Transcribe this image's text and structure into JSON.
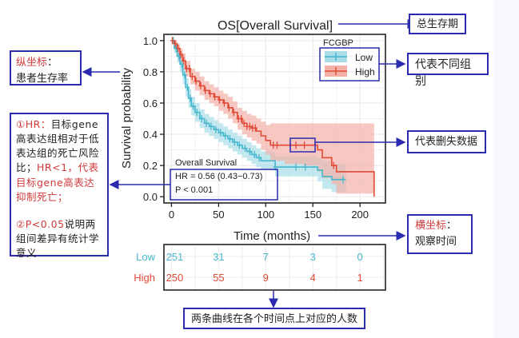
{
  "chart_data": {
    "type": "line",
    "subtype": "kaplan-meier",
    "title": "OS[Overall Survival]",
    "xlabel": "Time (months)",
    "ylabel": "Survival probability",
    "xlim": [
      -8,
      227
    ],
    "ylim": [
      -0.04,
      1.04
    ],
    "xticks": [
      0,
      50,
      100,
      150,
      200
    ],
    "yticks": [
      0.0,
      0.2,
      0.4,
      0.6,
      0.8,
      1.0
    ],
    "xtick_labels": [
      "0",
      "50",
      "100",
      "150",
      "200"
    ],
    "ytick_labels": [
      "0.0",
      "0.2",
      "0.4",
      "0.6",
      "0.8",
      "1.0"
    ],
    "grid": true,
    "legend": {
      "title": "FCGBP",
      "position": "top-right",
      "entries": [
        "Low",
        "High"
      ]
    },
    "series": [
      {
        "name": "Low",
        "color": "#45b7cd",
        "band_color": "#a8dde8",
        "x": [
          0,
          3,
          6,
          9,
          12,
          15,
          18,
          21,
          25,
          30,
          35,
          40,
          45,
          50,
          55,
          60,
          65,
          70,
          75,
          80,
          85,
          90,
          95,
          100,
          110,
          120,
          130,
          140,
          150,
          155,
          160,
          170,
          185
        ],
        "y": [
          1.0,
          0.95,
          0.9,
          0.85,
          0.78,
          0.7,
          0.63,
          0.58,
          0.54,
          0.5,
          0.47,
          0.45,
          0.43,
          0.41,
          0.39,
          0.37,
          0.35,
          0.33,
          0.31,
          0.29,
          0.27,
          0.25,
          0.23,
          0.23,
          0.19,
          0.19,
          0.19,
          0.19,
          0.19,
          0.17,
          0.13,
          0.11,
          0.11
        ],
        "lower": [
          1.0,
          0.92,
          0.86,
          0.8,
          0.72,
          0.64,
          0.57,
          0.52,
          0.48,
          0.44,
          0.41,
          0.39,
          0.37,
          0.35,
          0.33,
          0.31,
          0.29,
          0.27,
          0.25,
          0.23,
          0.21,
          0.19,
          0.17,
          0.17,
          0.13,
          0.13,
          0.13,
          0.13,
          0.13,
          0.1,
          0.05,
          0.03,
          0.03
        ],
        "upper": [
          1.0,
          0.98,
          0.94,
          0.9,
          0.84,
          0.76,
          0.69,
          0.64,
          0.6,
          0.56,
          0.53,
          0.51,
          0.49,
          0.47,
          0.45,
          0.43,
          0.41,
          0.39,
          0.37,
          0.35,
          0.33,
          0.31,
          0.29,
          0.29,
          0.26,
          0.26,
          0.26,
          0.26,
          0.26,
          0.25,
          0.23,
          0.21,
          0.21
        ],
        "censor_x": [
          2,
          5,
          8,
          11,
          14,
          17,
          20,
          23,
          27,
          32,
          37,
          42,
          47,
          52,
          57,
          62,
          67,
          72,
          78,
          83,
          88,
          93,
          110,
          132,
          142,
          182
        ]
      },
      {
        "name": "High",
        "color": "#e04a36",
        "band_color": "#f3b1a8",
        "x": [
          0,
          3,
          6,
          9,
          12,
          15,
          20,
          25,
          30,
          35,
          40,
          45,
          50,
          55,
          60,
          65,
          70,
          75,
          80,
          85,
          90,
          95,
          100,
          105,
          120,
          140,
          155,
          160,
          170,
          175,
          190,
          215
        ],
        "y": [
          1.0,
          0.98,
          0.95,
          0.91,
          0.87,
          0.82,
          0.77,
          0.74,
          0.71,
          0.68,
          0.66,
          0.64,
          0.62,
          0.6,
          0.57,
          0.54,
          0.5,
          0.47,
          0.45,
          0.44,
          0.42,
          0.39,
          0.36,
          0.33,
          0.33,
          0.33,
          0.3,
          0.25,
          0.2,
          0.16,
          0.16,
          0.0
        ],
        "lower": [
          1.0,
          0.96,
          0.92,
          0.87,
          0.82,
          0.77,
          0.72,
          0.68,
          0.65,
          0.62,
          0.6,
          0.58,
          0.55,
          0.53,
          0.5,
          0.47,
          0.43,
          0.4,
          0.38,
          0.36,
          0.34,
          0.3,
          0.27,
          0.23,
          0.21,
          0.2,
          0.16,
          0.12,
          0.08,
          0.02,
          0.02,
          0.02
        ],
        "upper": [
          1.0,
          1.0,
          0.98,
          0.95,
          0.92,
          0.87,
          0.82,
          0.8,
          0.77,
          0.74,
          0.72,
          0.7,
          0.68,
          0.66,
          0.64,
          0.61,
          0.57,
          0.55,
          0.53,
          0.52,
          0.5,
          0.48,
          0.46,
          0.47,
          0.47,
          0.47,
          0.47,
          0.47,
          0.47,
          0.47,
          0.47,
          0.47
        ],
        "censor_x": [
          1,
          4,
          7,
          10,
          13,
          16,
          19,
          22,
          26,
          31,
          36,
          41,
          46,
          51,
          56,
          61,
          66,
          71,
          74,
          77,
          80,
          83,
          86,
          89,
          108,
          112,
          126,
          132,
          141,
          172
        ]
      }
    ],
    "annotation": {
      "title": "Overall Survival",
      "hr": "HR = 0.56 (0.43−0.73)",
      "p": "P < 0.001"
    },
    "risk_table": {
      "times": [
        0,
        50,
        100,
        150,
        200
      ],
      "rows": [
        {
          "name": "Low",
          "color": "#45b7cd",
          "values": [
            251,
            31,
            7,
            3,
            0
          ]
        },
        {
          "name": "High",
          "color": "#e04a36",
          "values": [
            250,
            55,
            9,
            4,
            1
          ]
        }
      ]
    }
  },
  "notes": {
    "y_axis": {
      "label": "纵坐标",
      "colon": "：",
      "text": "患者生存率"
    },
    "hr": {
      "p1_prefix": "①HR：",
      "p1_text": "目标gene高表达组相对于低表达组的死亡风险比；",
      "p1_red": "HR<1，代表目标gene高表达抑制死亡；",
      "p2_prefix": "②P<0.05",
      "p2_text": "说明两组间差异有统计学意义"
    },
    "title_note": "总生存期",
    "legend_note": "代表不同组别",
    "censor_note": "代表删失数据",
    "x_axis": {
      "label": "横坐标",
      "colon": "：",
      "text": "观察时间"
    },
    "risk_note": "两条曲线在各个时间点上对应的人数"
  }
}
